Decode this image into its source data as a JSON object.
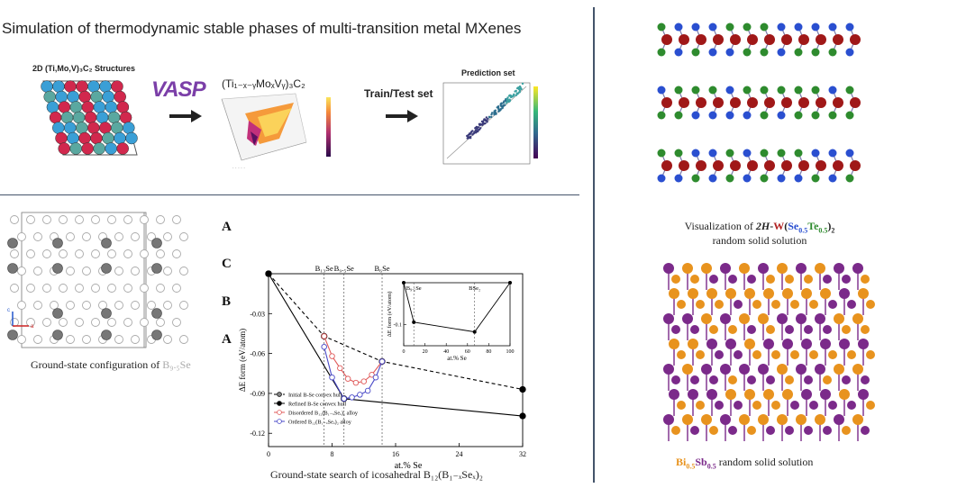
{
  "banner": {
    "title": "Simulation of thermodynamic stable phases of multi-transition metal MXenes",
    "structure_label": "2D (Ti,Mo,V)₃C₂ Structures",
    "vasp_logo": "VASP",
    "formula_label": "(Ti₁₋ₓ₋ᵧMoₓVᵧ)₃C₂",
    "train_test_label": "Train/Test set",
    "prediction_label": "Prediction set"
  },
  "boron_section": {
    "ground_state_caption": "Ground-state configuration of",
    "ground_state_formula": "B₉.₅Se",
    "stacking_letters": [
      "A",
      "C",
      "B",
      "A"
    ],
    "search_caption": "Ground-state search of icosahedral B₁₂(B₁₋ₓSeₓ)₂"
  },
  "right_panel": {
    "tmd_caption_prefix": "Visualization of",
    "tmd_formula": {
      "phase": "2H",
      "metal": "W",
      "se": "Se",
      "se_frac": "0.5",
      "te": "Te",
      "te_frac": "0.5"
    },
    "tmd_caption_suffix": "random solid solution",
    "bisb_caption": {
      "bi": "Bi",
      "bi_frac": "0.5",
      "sb": "Sb",
      "sb_frac": "0.5",
      "suffix": "random solid solution"
    }
  },
  "chart_data": {
    "type": "line",
    "xlabel": "at.% Se",
    "ylabel": "ΔE form (eV/atom)",
    "xlim": [
      0,
      32
    ],
    "ylim": [
      -0.13,
      0
    ],
    "xticks": [
      "0",
      "8",
      "16",
      "24",
      "32"
    ],
    "yticks": [
      "-0.03",
      "-0.06",
      "-0.09",
      "-0.12"
    ],
    "vlines": [
      {
        "label": "B₁₃Se",
        "x": 7
      },
      {
        "label": "B₉.₅Se",
        "x": 9.5
      },
      {
        "label": "B₆Se",
        "x": 14.3
      }
    ],
    "series": [
      {
        "name": "Initial B-Se convex hull",
        "style": "dashed",
        "color": "#000000",
        "x": [
          0,
          7,
          14.3,
          32
        ],
        "y": [
          0,
          -0.047,
          -0.066,
          -0.087
        ]
      },
      {
        "name": "Refined B-Se convex hull",
        "style": "solid",
        "color": "#000000",
        "x": [
          0,
          9.5,
          32
        ],
        "y": [
          0,
          -0.094,
          -0.107
        ]
      },
      {
        "name": "Disordered B₁₂(B₁₋ₓSeₓ)₂ alloy",
        "style": "solid",
        "color": "#e05a5a",
        "x": [
          7,
          8,
          9,
          10,
          11,
          12,
          13,
          14.3
        ],
        "y": [
          -0.047,
          -0.062,
          -0.071,
          -0.079,
          -0.082,
          -0.081,
          -0.076,
          -0.066
        ]
      },
      {
        "name": "Ordered B₁₂(B₁₋ₓSeₓ)₂ alloy",
        "style": "solid",
        "color": "#4a4ac8",
        "x": [
          7,
          8,
          9.5,
          10.5,
          11.5,
          12.5,
          13.5,
          14.3
        ],
        "y": [
          -0.055,
          -0.078,
          -0.094,
          -0.093,
          -0.091,
          -0.088,
          -0.078,
          -0.066
        ]
      }
    ],
    "inset": {
      "xlabel": "at.% Se",
      "ylabel": "ΔE form (eV/atom)",
      "xlim": [
        0,
        100
      ],
      "ylim": [
        -0.15,
        0
      ],
      "xticks": [
        "0",
        "20",
        "40",
        "60",
        "80",
        "100"
      ],
      "yticks": [
        "-0.1"
      ],
      "vlines": [
        {
          "label": "B₉.₅Se",
          "x": 9.5
        },
        {
          "label": "BSe₂",
          "x": 66.7
        }
      ],
      "x": [
        0,
        9.5,
        66.7,
        100
      ],
      "y": [
        0,
        -0.094,
        -0.117,
        0
      ]
    }
  }
}
